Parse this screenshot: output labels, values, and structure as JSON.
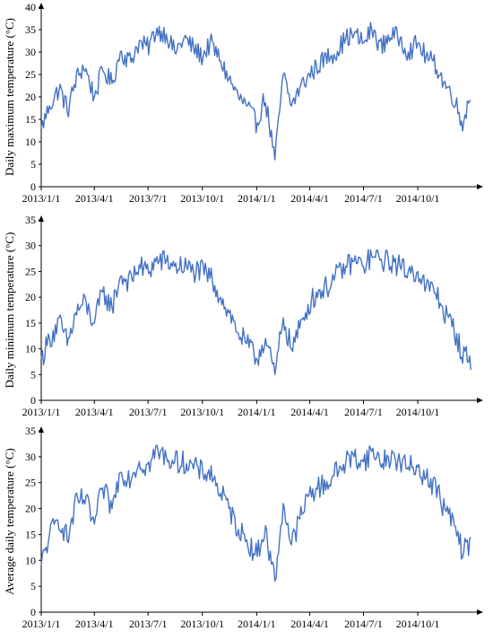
{
  "colors": {
    "line": "#4472C4",
    "axis": "#000000"
  },
  "chart_data": [
    {
      "type": "line",
      "title": "",
      "xlabel": "",
      "ylabel": "Daily maximum temperature (°C)",
      "ylim": [
        0,
        40
      ],
      "yticks": [
        0,
        5,
        10,
        15,
        20,
        25,
        30,
        35,
        40
      ],
      "xlim": [
        "2013-01-01",
        "2014-12-31"
      ],
      "xtick_labels": [
        "2013/1/1",
        "2013/4/1",
        "2013/7/1",
        "2013/10/1",
        "2014/1/1",
        "2014/4/1",
        "2014/7/1",
        "2014/10/1"
      ],
      "xtick_dates": [
        "2013-01-01",
        "2013-04-01",
        "2013-07-01",
        "2013-10-01",
        "2014-01-01",
        "2014-04-01",
        "2014-07-01",
        "2014-10-01"
      ],
      "grid": false,
      "series": [
        {
          "x": [
            "2013-01-01",
            "2013-01-15",
            "2013-02-01",
            "2013-02-15",
            "2013-03-01",
            "2013-03-15",
            "2013-04-01",
            "2013-04-15",
            "2013-05-01",
            "2013-05-15",
            "2013-06-01",
            "2013-06-15",
            "2013-07-01",
            "2013-07-15",
            "2013-08-01",
            "2013-08-15",
            "2013-09-01",
            "2013-09-15",
            "2013-10-01",
            "2013-10-15",
            "2013-11-01",
            "2013-11-15",
            "2013-12-01",
            "2013-12-15",
            "2014-01-01",
            "2014-01-15",
            "2014-02-01",
            "2014-02-15",
            "2014-03-01",
            "2014-03-15",
            "2014-04-01",
            "2014-04-15",
            "2014-05-01",
            "2014-05-15",
            "2014-06-01",
            "2014-06-15",
            "2014-07-01",
            "2014-07-15",
            "2014-08-01",
            "2014-08-15",
            "2014-09-01",
            "2014-09-15",
            "2014-10-01",
            "2014-10-15",
            "2014-11-01",
            "2014-11-15",
            "2014-12-01",
            "2014-12-15",
            "2014-12-31"
          ],
          "values": [
            13,
            18,
            22,
            17,
            24,
            27,
            20,
            26,
            23,
            30,
            28,
            32,
            31,
            35,
            34,
            30,
            33,
            31,
            29,
            32,
            28,
            24,
            20,
            18,
            14,
            20,
            6,
            25,
            18,
            22,
            25,
            27,
            29,
            30,
            33,
            34,
            32,
            35,
            31,
            34,
            33,
            30,
            32,
            29,
            27,
            23,
            20,
            14,
            21
          ]
        }
      ]
    },
    {
      "type": "line",
      "title": "",
      "xlabel": "",
      "ylabel": "Daily minimum temperature (°C)",
      "ylim": [
        0,
        35
      ],
      "yticks": [
        0,
        5,
        10,
        15,
        20,
        25,
        30,
        35
      ],
      "xlim": [
        "2013-01-01",
        "2014-12-31"
      ],
      "xtick_labels": [
        "2013/1/1",
        "2013/4/1",
        "2013/7/1",
        "2013/10/1",
        "2014/1/1",
        "2014/4/1",
        "2014/7/1",
        "2014/10/1"
      ],
      "xtick_dates": [
        "2013-01-01",
        "2013-04-01",
        "2013-07-01",
        "2013-10-01",
        "2014-01-01",
        "2014-04-01",
        "2014-07-01",
        "2014-10-01"
      ],
      "grid": false,
      "series": [
        {
          "x": [
            "2013-01-01",
            "2013-01-15",
            "2013-02-01",
            "2013-02-15",
            "2013-03-01",
            "2013-03-15",
            "2013-04-01",
            "2013-04-15",
            "2013-05-01",
            "2013-05-15",
            "2013-06-01",
            "2013-06-15",
            "2013-07-01",
            "2013-07-15",
            "2013-08-01",
            "2013-08-15",
            "2013-09-01",
            "2013-09-15",
            "2013-10-01",
            "2013-10-15",
            "2013-11-01",
            "2013-11-15",
            "2013-12-01",
            "2013-12-15",
            "2014-01-01",
            "2014-01-15",
            "2014-02-01",
            "2014-02-15",
            "2014-03-01",
            "2014-03-15",
            "2014-04-01",
            "2014-04-15",
            "2014-05-01",
            "2014-05-15",
            "2014-06-01",
            "2014-06-15",
            "2014-07-01",
            "2014-07-15",
            "2014-08-01",
            "2014-08-15",
            "2014-09-01",
            "2014-09-15",
            "2014-10-01",
            "2014-10-15",
            "2014-11-01",
            "2014-11-15",
            "2014-12-01",
            "2014-12-15",
            "2014-12-31"
          ],
          "values": [
            8,
            12,
            15,
            11,
            17,
            19,
            15,
            21,
            18,
            24,
            23,
            26,
            25,
            27,
            27,
            26,
            26,
            25,
            25,
            24,
            20,
            17,
            13,
            11,
            8,
            12,
            5,
            16,
            10,
            14,
            19,
            21,
            22,
            24,
            26,
            27,
            26,
            28,
            27,
            27,
            26,
            25,
            25,
            22,
            21,
            17,
            14,
            9,
            8
          ]
        }
      ]
    },
    {
      "type": "line",
      "title": "",
      "xlabel": "",
      "ylabel": "Average daily temperature (°C)",
      "ylim": [
        0,
        35
      ],
      "yticks": [
        0,
        5,
        10,
        15,
        20,
        25,
        30,
        35
      ],
      "xlim": [
        "2013-01-01",
        "2014-12-31"
      ],
      "xtick_labels": [
        "2013/1/1",
        "2013/4/1",
        "2013/7/1",
        "2013/10/1",
        "2014/1/1",
        "2014/4/1",
        "2014/7/1",
        "2014/10/1"
      ],
      "xtick_dates": [
        "2013-01-01",
        "2013-04-01",
        "2013-07-01",
        "2013-10-01",
        "2014-01-01",
        "2014-04-01",
        "2014-07-01",
        "2014-10-01"
      ],
      "grid": false,
      "series": [
        {
          "x": [
            "2013-01-01",
            "2013-01-15",
            "2013-02-01",
            "2013-02-15",
            "2013-03-01",
            "2013-03-15",
            "2013-04-01",
            "2013-04-15",
            "2013-05-01",
            "2013-05-15",
            "2013-06-01",
            "2013-06-15",
            "2013-07-01",
            "2013-07-15",
            "2013-08-01",
            "2013-08-15",
            "2013-09-01",
            "2013-09-15",
            "2013-10-01",
            "2013-10-15",
            "2013-11-01",
            "2013-11-15",
            "2013-12-01",
            "2013-12-15",
            "2014-01-01",
            "2014-01-15",
            "2014-02-01",
            "2014-02-15",
            "2014-03-01",
            "2014-03-15",
            "2014-04-01",
            "2014-04-15",
            "2014-05-01",
            "2014-05-15",
            "2014-06-01",
            "2014-06-15",
            "2014-07-01",
            "2014-07-15",
            "2014-08-01",
            "2014-08-15",
            "2014-09-01",
            "2014-09-15",
            "2014-10-01",
            "2014-10-15",
            "2014-11-01",
            "2014-11-15",
            "2014-12-01",
            "2014-12-15",
            "2014-12-31"
          ],
          "values": [
            9,
            15,
            18,
            14,
            21,
            22,
            17,
            24,
            20,
            27,
            26,
            29,
            28,
            31,
            30,
            29,
            29,
            28,
            27,
            27,
            23,
            20,
            16,
            14,
            11,
            16,
            6,
            21,
            13,
            18,
            23,
            24,
            25,
            27,
            29,
            30,
            29,
            31,
            29,
            30,
            29,
            28,
            28,
            26,
            24,
            20,
            17,
            12,
            13
          ]
        }
      ]
    }
  ]
}
